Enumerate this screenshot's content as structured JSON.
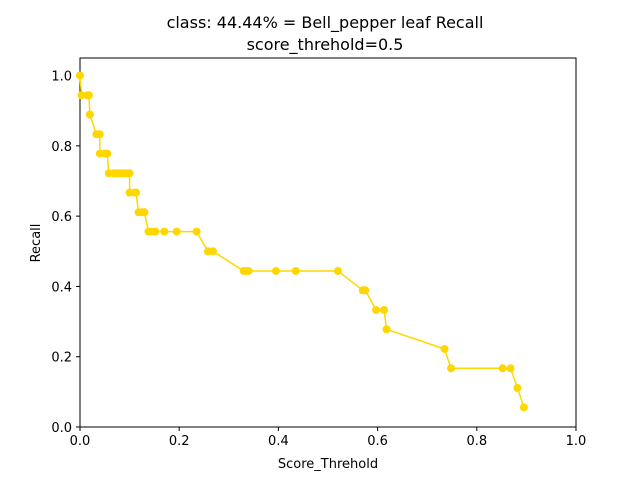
{
  "chart_data": {
    "type": "line",
    "title": "class: 44.44% = Bell_pepper leaf Recall",
    "subtitle": "score_threhold=0.5",
    "xlabel": "Score_Threhold",
    "ylabel": "Recall",
    "xlim": [
      0,
      1
    ],
    "ylim": [
      0,
      1.05
    ],
    "x_ticks": [
      "0.0",
      "0.2",
      "0.4",
      "0.6",
      "0.8",
      "1.0"
    ],
    "y_ticks": [
      "0.0",
      "0.2",
      "0.4",
      "0.6",
      "0.8",
      "1.0"
    ],
    "grid": false,
    "color": "#ffd700",
    "x": [
      0.0,
      0.003,
      0.015,
      0.018,
      0.02,
      0.02,
      0.033,
      0.04,
      0.04,
      0.05,
      0.055,
      0.058,
      0.068,
      0.075,
      0.08,
      0.088,
      0.095,
      0.1,
      0.1,
      0.11,
      0.113,
      0.118,
      0.125,
      0.13,
      0.138,
      0.145,
      0.152,
      0.17,
      0.195,
      0.235,
      0.258,
      0.268,
      0.33,
      0.335,
      0.34,
      0.395,
      0.435,
      0.52,
      0.57,
      0.575,
      0.597,
      0.613,
      0.618,
      0.735,
      0.748,
      0.852,
      0.868,
      0.882,
      0.895
    ],
    "y": [
      1.0,
      0.944,
      0.944,
      0.944,
      0.889,
      0.889,
      0.833,
      0.833,
      0.778,
      0.778,
      0.778,
      0.722,
      0.722,
      0.722,
      0.722,
      0.722,
      0.722,
      0.722,
      0.667,
      0.667,
      0.667,
      0.611,
      0.611,
      0.611,
      0.556,
      0.556,
      0.556,
      0.556,
      0.556,
      0.556,
      0.5,
      0.5,
      0.444,
      0.444,
      0.444,
      0.444,
      0.444,
      0.444,
      0.389,
      0.389,
      0.333,
      0.333,
      0.278,
      0.222,
      0.167,
      0.167,
      0.167,
      0.111,
      0.056
    ]
  }
}
